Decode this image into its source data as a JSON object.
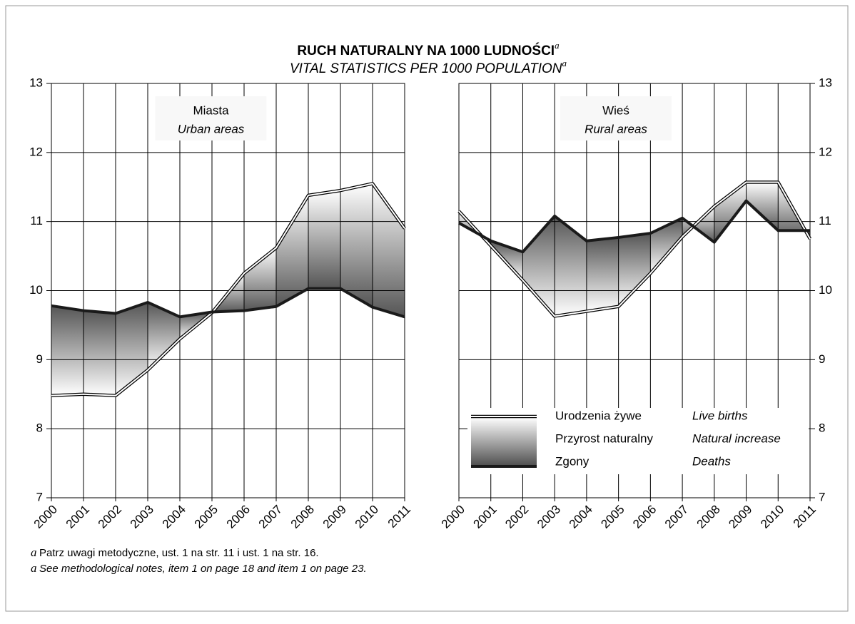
{
  "title": "RUCH NATURALNY NA 1000 LUDNOŚCI",
  "title_marker": "a",
  "subtitle": "VITAL STATISTICS PER 1000 POPULATION",
  "subtitle_marker": "a",
  "chart_data": [
    {
      "type": "area",
      "panel_label": "Miasta",
      "panel_label_en": "Urban areas",
      "y_axis_side": "left",
      "categories": [
        "2000",
        "2001",
        "2002",
        "2003",
        "2004",
        "2005",
        "2006",
        "2007",
        "2008",
        "2009",
        "2010",
        "2011"
      ],
      "series": [
        {
          "name": "Urodzenia żywe",
          "name_en": "Live births",
          "color": "#ffffff",
          "values": [
            8.48,
            8.5,
            8.48,
            8.85,
            9.3,
            9.68,
            10.25,
            10.62,
            11.38,
            11.45,
            11.55,
            10.9
          ]
        },
        {
          "name": "Zgony",
          "name_en": "Deaths",
          "color": "#1a1a1a",
          "values": [
            9.78,
            9.71,
            9.67,
            9.83,
            9.62,
            9.69,
            9.71,
            9.77,
            10.03,
            10.03,
            9.76,
            9.62
          ]
        }
      ],
      "ylim": [
        7,
        13
      ],
      "yticks": [
        7,
        8,
        9,
        10,
        11,
        12,
        13
      ],
      "grid": true
    },
    {
      "type": "area",
      "panel_label": "Wieś",
      "panel_label_en": "Rural areas",
      "y_axis_side": "right",
      "categories": [
        "2000",
        "2001",
        "2002",
        "2003",
        "2004",
        "2005",
        "2006",
        "2007",
        "2008",
        "2009",
        "2010",
        "2011"
      ],
      "series": [
        {
          "name": "Urodzenia żywe",
          "name_en": "Live births",
          "color": "#ffffff",
          "values": [
            11.15,
            10.65,
            10.15,
            9.63,
            9.7,
            9.77,
            10.25,
            10.78,
            11.22,
            11.57,
            11.57,
            10.75
          ]
        },
        {
          "name": "Zgony",
          "name_en": "Deaths",
          "color": "#1a1a1a",
          "values": [
            10.98,
            10.72,
            10.56,
            11.08,
            10.72,
            10.77,
            10.83,
            11.05,
            10.7,
            11.3,
            10.87,
            10.87
          ]
        }
      ],
      "ylim": [
        7,
        13
      ],
      "yticks": [
        7,
        8,
        9,
        10,
        11,
        12,
        13
      ],
      "grid": true,
      "legend": {
        "fill_name": "Przyrost naturalny",
        "fill_name_en": "Natural increase",
        "position": "lower right"
      }
    }
  ],
  "footnotes": [
    {
      "marker": "a",
      "text": "Patrz uwagi metodyczne, ust. 1 na str. 11 i ust. 1 na str. 16."
    },
    {
      "marker": "a",
      "text": "See methodological notes, item 1 on page 18 and item 1 on page 23."
    }
  ]
}
